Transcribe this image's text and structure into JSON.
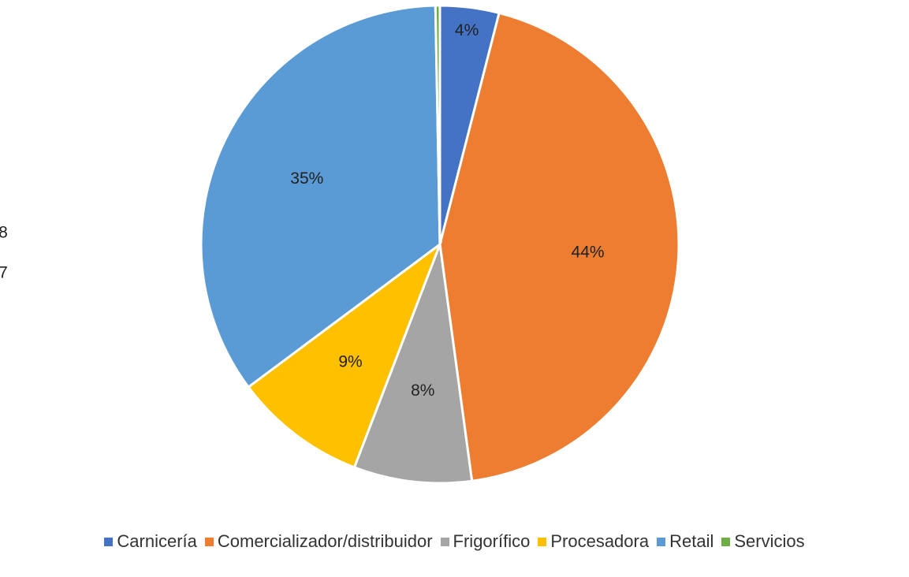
{
  "chart_data": {
    "type": "pie",
    "categories": [
      "Carnicería",
      "Comercializador/distribuidor",
      "Frigorífico",
      "Procesadora",
      "Retail",
      "Servicios"
    ],
    "values": [
      4,
      44,
      8,
      9,
      35,
      0.3
    ],
    "value_labels": [
      "4%",
      "44%",
      "8%",
      "9%",
      "35%",
      null
    ],
    "colors": [
      "#4472c4",
      "#ed7d31",
      "#a5a5a5",
      "#ffc000",
      "#5b9bd5",
      "#70ad47"
    ],
    "annotations": [
      "8",
      "7"
    ],
    "legend": "bottom"
  }
}
